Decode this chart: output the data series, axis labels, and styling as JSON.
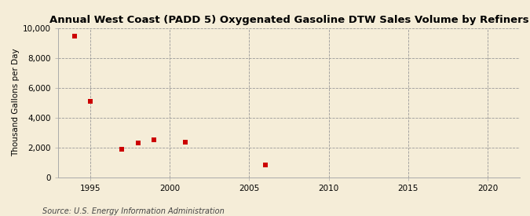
{
  "title": "Annual West Coast (PADD 5) Oxygenated Gasoline DTW Sales Volume by Refiners",
  "ylabel": "Thousand Gallons per Day",
  "source": "Source: U.S. Energy Information Administration",
  "background_color": "#f5edd8",
  "scatter_color": "#cc0000",
  "marker": "s",
  "marker_size": 4,
  "data_points": [
    [
      1994,
      9480
    ],
    [
      1995,
      5100
    ],
    [
      1997,
      1850
    ],
    [
      1998,
      2300
    ],
    [
      1999,
      2520
    ],
    [
      2001,
      2350
    ],
    [
      2006,
      800
    ]
  ],
  "xlim": [
    1993,
    2022
  ],
  "ylim": [
    0,
    10000
  ],
  "xticks": [
    1995,
    2000,
    2005,
    2010,
    2015,
    2020
  ],
  "yticks": [
    0,
    2000,
    4000,
    6000,
    8000,
    10000
  ],
  "ytick_labels": [
    "0",
    "2,000",
    "4,000",
    "6,000",
    "8,000",
    "10,000"
  ],
  "grid_color": "#999999",
  "grid_linestyle": "--",
  "title_fontsize": 9.5,
  "label_fontsize": 7.5,
  "tick_fontsize": 7.5,
  "source_fontsize": 7.0
}
